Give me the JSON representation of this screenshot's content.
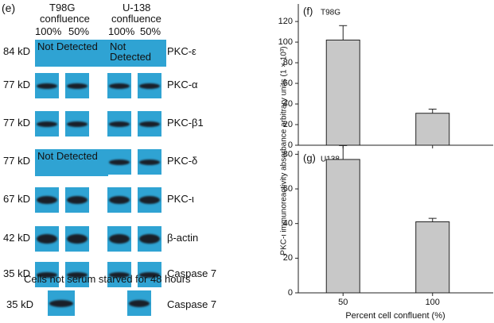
{
  "panel_e": {
    "label": "(e)",
    "cell_lines": [
      {
        "name": "T98G",
        "sub": "confluence",
        "conditions": [
          "100%",
          "50%"
        ]
      },
      {
        "name": "U-138",
        "sub": "confluence",
        "conditions": [
          "100%",
          "50%"
        ]
      }
    ],
    "rows": [
      {
        "size": "84 kD",
        "protein": "PKC-ε",
        "t98g_note": "Not Detected",
        "u138_note": "Not Detected"
      },
      {
        "size": "77 kD",
        "protein": "PKC-α"
      },
      {
        "size": "77 kD",
        "protein": "PKC-β1"
      },
      {
        "size": "77 kD",
        "protein": "PKC-δ",
        "t98g_note": "Not Detected"
      },
      {
        "size": "67 kD",
        "protein": "PKC-ι"
      },
      {
        "size": "42 kD",
        "protein": "β-actin"
      },
      {
        "size": "35 kD",
        "protein": "Caspase 7"
      }
    ],
    "note": "Cells not serum starved for 48 hours",
    "extra_row": {
      "size": "35 kD",
      "protein": "Caspase 7"
    }
  },
  "axes": {
    "y_label": "PKC-ι immunoreactivity absorbance arbitrary units (1 × 10³)",
    "x_label": "Percent cell confluent (%)"
  },
  "chart_data": [
    {
      "type": "bar",
      "label": "(f)",
      "title": "T98G",
      "categories": [
        "50",
        "100"
      ],
      "values": [
        102,
        31
      ],
      "errors": [
        14,
        4
      ],
      "color": "#c8c8c8",
      "ylim": [
        0,
        137
      ],
      "yticks": [
        0,
        20,
        40,
        60,
        80,
        100,
        120
      ]
    },
    {
      "type": "bar",
      "label": "(g)",
      "title": "U138",
      "categories": [
        "50",
        "100"
      ],
      "values": [
        77,
        41
      ],
      "errors": [
        8,
        2
      ],
      "color": "#c8c8c8",
      "ylim": [
        0,
        82
      ],
      "yticks": [
        0,
        20,
        40,
        60,
        80
      ]
    }
  ]
}
